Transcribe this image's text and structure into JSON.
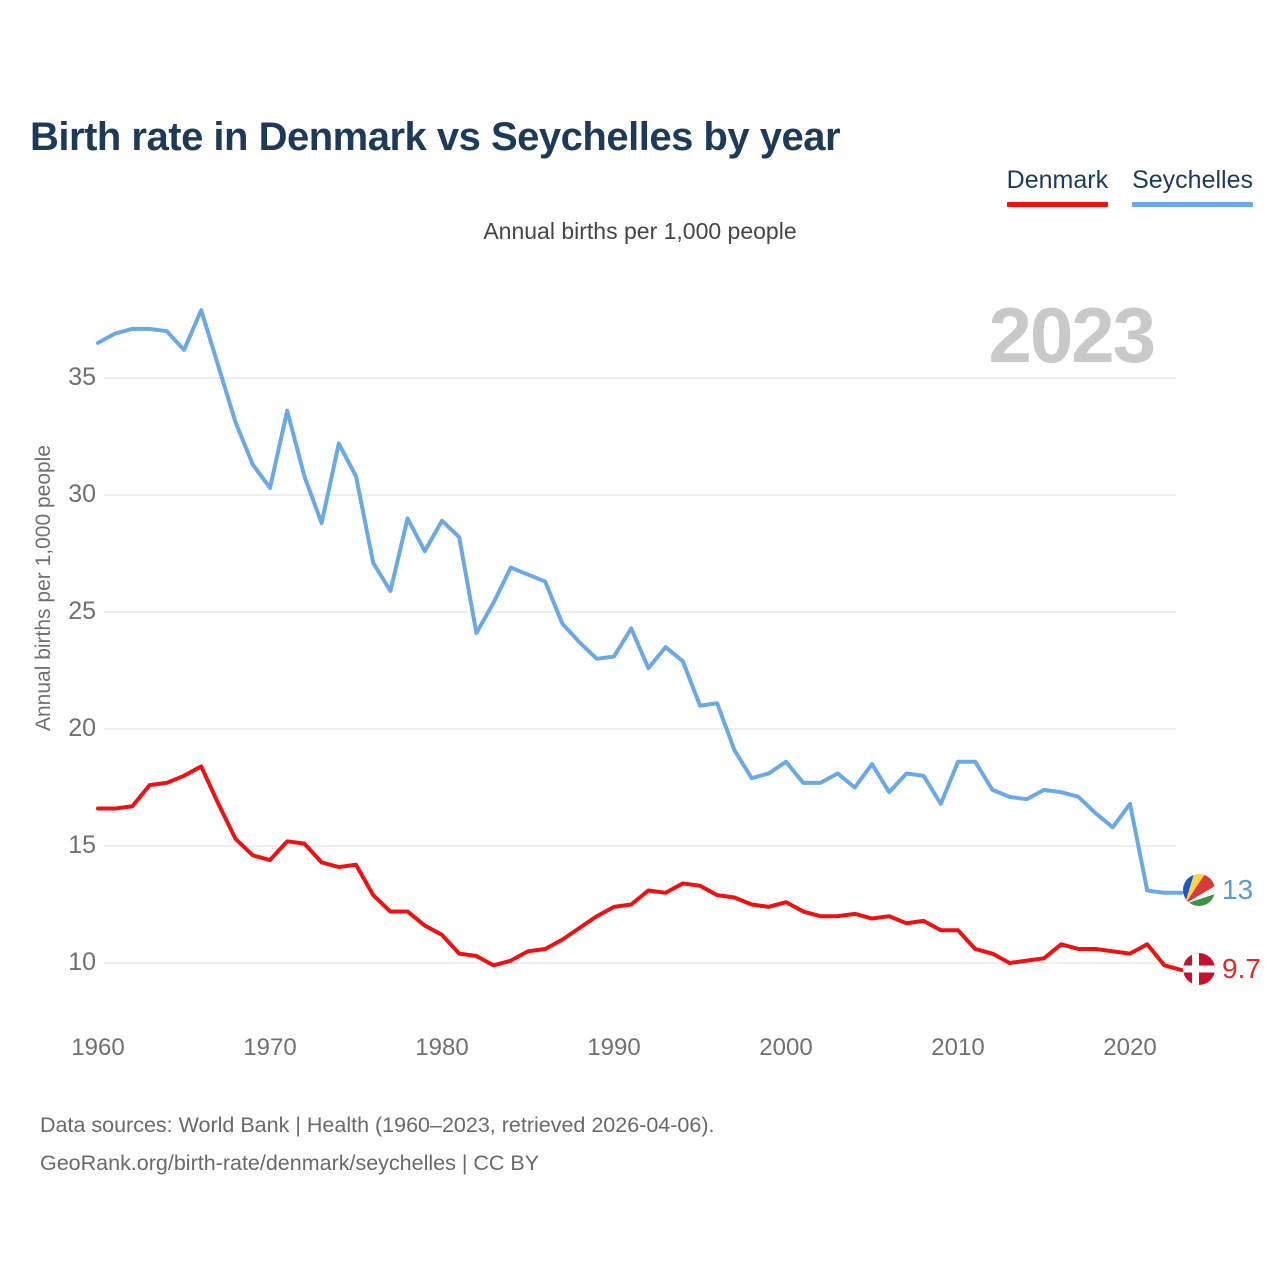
{
  "title": "Birth rate in Denmark vs Seychelles by year",
  "subtitle": "Annual births per 1,000 people",
  "watermark": "2023",
  "legend": [
    {
      "label": "Denmark",
      "color": "#ee1111"
    },
    {
      "label": "Seychelles",
      "color": "#6aa9e6"
    }
  ],
  "end_labels": [
    {
      "series": "Seychelles",
      "value": "13",
      "color": "#5b9bd5",
      "icon": "seychelles-flag-icon"
    },
    {
      "series": "Denmark",
      "value": "9.7",
      "color": "#ee2222",
      "icon": "denmark-flag-icon"
    }
  ],
  "footer": {
    "line1": "Data sources: World Bank | Health (1960–2023, retrieved 2026-04-06).",
    "line2": "GeoRank.org/birth-rate/denmark/seychelles | CC BY"
  },
  "chart_data": {
    "type": "line",
    "title": "Birth rate in Denmark vs Seychelles by year",
    "subtitle": "Annual births per 1,000 people",
    "xlabel": "",
    "ylabel": "Annual births per 1,000 people",
    "grid": true,
    "legend_position": "top-right",
    "ylim": [
      8,
      39
    ],
    "yticks": [
      10,
      15,
      20,
      25,
      30,
      35
    ],
    "xticks": [
      1960,
      1970,
      1980,
      1990,
      2000,
      2010,
      2020
    ],
    "x": [
      1960,
      1961,
      1962,
      1963,
      1964,
      1965,
      1966,
      1967,
      1968,
      1969,
      1970,
      1971,
      1972,
      1973,
      1974,
      1975,
      1976,
      1977,
      1978,
      1979,
      1980,
      1981,
      1982,
      1983,
      1984,
      1985,
      1986,
      1987,
      1988,
      1989,
      1990,
      1991,
      1992,
      1993,
      1994,
      1995,
      1996,
      1997,
      1998,
      1999,
      2000,
      2001,
      2002,
      2003,
      2004,
      2005,
      2006,
      2007,
      2008,
      2009,
      2010,
      2011,
      2012,
      2013,
      2014,
      2015,
      2016,
      2017,
      2018,
      2019,
      2020,
      2021,
      2022,
      2023
    ],
    "series": [
      {
        "name": "Denmark",
        "color": "#ee1111",
        "values": [
          16.6,
          16.6,
          16.7,
          17.6,
          17.7,
          18.0,
          18.4,
          16.8,
          15.3,
          14.6,
          14.4,
          15.2,
          15.1,
          14.3,
          14.1,
          14.2,
          12.9,
          12.2,
          12.2,
          11.6,
          11.2,
          10.4,
          10.3,
          9.9,
          10.1,
          10.5,
          10.6,
          11.0,
          11.5,
          12.0,
          12.4,
          12.5,
          13.1,
          13.0,
          13.4,
          13.3,
          12.9,
          12.8,
          12.5,
          12.4,
          12.6,
          12.2,
          12.0,
          12.0,
          12.1,
          11.9,
          12.0,
          11.7,
          11.8,
          11.4,
          11.4,
          10.6,
          10.4,
          10.0,
          10.1,
          10.2,
          10.8,
          10.6,
          10.6,
          10.5,
          10.4,
          10.8,
          9.9,
          9.7
        ]
      },
      {
        "name": "Seychelles",
        "color": "#6aa9e6",
        "values": [
          36.5,
          36.9,
          37.1,
          37.1,
          37.0,
          36.2,
          37.9,
          35.5,
          33.1,
          31.3,
          30.3,
          33.6,
          30.8,
          28.8,
          32.2,
          30.8,
          27.1,
          25.9,
          29.0,
          27.6,
          28.9,
          28.2,
          24.1,
          25.4,
          26.9,
          26.6,
          26.3,
          24.5,
          23.7,
          23.0,
          23.1,
          24.3,
          22.6,
          23.5,
          22.9,
          21.0,
          21.1,
          19.1,
          17.9,
          18.1,
          18.6,
          17.7,
          17.7,
          18.1,
          17.5,
          18.5,
          17.3,
          18.1,
          18.0,
          16.8,
          18.6,
          18.6,
          17.4,
          17.1,
          17.0,
          17.4,
          17.3,
          17.1,
          16.4,
          15.8,
          16.8,
          13.1,
          13.0,
          13.0
        ]
      }
    ]
  }
}
